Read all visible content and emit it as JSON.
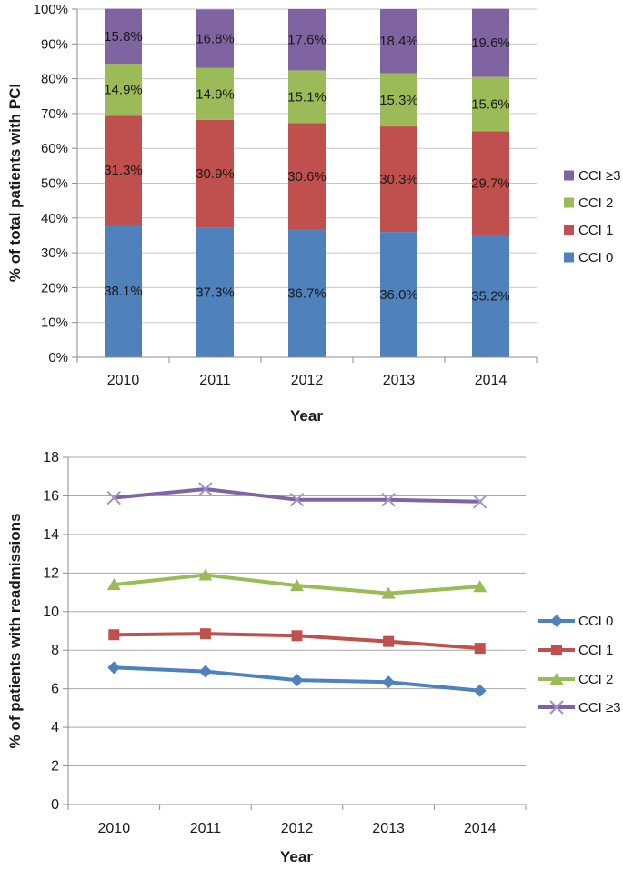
{
  "figure": {
    "background": "#ffffff"
  },
  "colors": {
    "cci0": "#4F81BD",
    "cci1": "#C0504D",
    "cci2": "#9BBB59",
    "cci3": "#8064A2",
    "cci3_marker": "#A391C8",
    "gridline_top": "#C6C6C6",
    "gridline_bottom": "#A8A8A8",
    "axis": "#8E8E8E",
    "text": "#1A1A1A"
  },
  "chart_data": [
    {
      "type": "bar",
      "stacked": true,
      "title": "",
      "xlabel": "Year",
      "ylabel": "% of total patients with PCI",
      "categories": [
        "2010",
        "2011",
        "2012",
        "2013",
        "2014"
      ],
      "series": [
        {
          "name": "CCI 0",
          "color": "cci0",
          "values": [
            38.1,
            37.3,
            36.7,
            36.0,
            35.2
          ],
          "labels": [
            "38.1%",
            "37.3%",
            "36.7%",
            "36.0%",
            "35.2%"
          ]
        },
        {
          "name": "CCI 1",
          "color": "cci1",
          "values": [
            31.3,
            30.9,
            30.6,
            30.3,
            29.7
          ],
          "labels": [
            "31.3%",
            "30.9%",
            "30.6%",
            "30.3%",
            "29.7%"
          ]
        },
        {
          "name": "CCI 2",
          "color": "cci2",
          "values": [
            14.9,
            14.9,
            15.1,
            15.3,
            15.6
          ],
          "labels": [
            "14.9%",
            "14.9%",
            "15.1%",
            "15.3%",
            "15.6%"
          ]
        },
        {
          "name": "CCI ≥3",
          "color": "cci3",
          "values": [
            15.8,
            16.8,
            17.6,
            18.4,
            19.6
          ],
          "labels": [
            "15.8%",
            "16.8%",
            "17.6%",
            "18.4%",
            "19.6%"
          ]
        }
      ],
      "y_ticks": [
        "0%",
        "10%",
        "20%",
        "30%",
        "40%",
        "50%",
        "60%",
        "70%",
        "80%",
        "90%",
        "100%"
      ],
      "ylim": [
        0,
        100
      ],
      "grid": true,
      "legend_position": "right",
      "legend_order": [
        "CCI ≥3",
        "CCI 2",
        "CCI 1",
        "CCI 0"
      ]
    },
    {
      "type": "line",
      "title": "",
      "xlabel": "Year",
      "ylabel": "% of patients with readmissions",
      "categories": [
        "2010",
        "2011",
        "2012",
        "2013",
        "2014"
      ],
      "series": [
        {
          "name": "CCI 0",
          "color": "cci0",
          "marker": "diamond",
          "values": [
            7.1,
            6.9,
            6.45,
            6.35,
            5.9
          ]
        },
        {
          "name": "CCI 1",
          "color": "cci1",
          "marker": "square",
          "values": [
            8.8,
            8.85,
            8.75,
            8.45,
            8.1
          ]
        },
        {
          "name": "CCI 2",
          "color": "cci2",
          "marker": "triangle",
          "values": [
            11.4,
            11.9,
            11.35,
            10.95,
            11.3
          ]
        },
        {
          "name": "CCI ≥3",
          "color": "cci3",
          "marker": "x",
          "values": [
            15.9,
            16.35,
            15.8,
            15.8,
            15.7
          ]
        }
      ],
      "y_ticks": [
        "0",
        "2",
        "4",
        "6",
        "8",
        "10",
        "12",
        "14",
        "16",
        "18"
      ],
      "ylim": [
        0,
        18
      ],
      "grid": true,
      "legend_position": "right",
      "legend_order": [
        "CCI 0",
        "CCI 1",
        "CCI 2",
        "CCI ≥3"
      ]
    }
  ]
}
